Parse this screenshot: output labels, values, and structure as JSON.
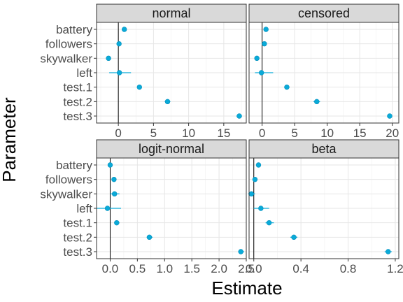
{
  "chart_data": {
    "type": "scatter",
    "subtype": "point-range facets",
    "xlabel": "Estimate",
    "ylabel": "Parameter",
    "grid": true,
    "point_color": "#0aaad8",
    "strip_color": "#d9d9d9",
    "categories": [
      "battery",
      "followers",
      "skywalker",
      "left",
      "test.1",
      "test.2",
      "test.3"
    ],
    "panels": [
      {
        "title": "normal",
        "xlim": [
          -3.1,
          18.2
        ],
        "xticks": [
          0,
          5,
          10,
          15
        ],
        "xticklabels": [
          "0",
          "5",
          "10",
          "15"
        ],
        "values": [
          0.85,
          0.1,
          -1.4,
          0.15,
          3.0,
          7.0,
          17.2
        ],
        "lower": [
          0.6,
          -0.1,
          -1.7,
          -1.3,
          2.7,
          6.6,
          16.8
        ],
        "upper": [
          1.1,
          0.3,
          -1.1,
          1.8,
          3.3,
          7.4,
          17.6
        ]
      },
      {
        "title": "censored",
        "xlim": [
          -2.0,
          21.0
        ],
        "xticks": [
          0,
          5,
          10,
          15,
          20
        ],
        "xticklabels": [
          "0",
          "5",
          "10",
          "15",
          "20"
        ],
        "values": [
          0.6,
          0.35,
          -0.8,
          -0.1,
          3.8,
          8.4,
          19.6
        ],
        "lower": [
          0.3,
          0.1,
          -1.1,
          -1.1,
          3.4,
          7.9,
          19.2
        ],
        "upper": [
          0.9,
          0.6,
          -0.5,
          1.7,
          4.2,
          8.9,
          20.0
        ]
      },
      {
        "title": "logit-normal",
        "xlim": [
          -0.25,
          2.5
        ],
        "xticks": [
          0.0,
          0.5,
          1.0,
          1.5,
          2.0,
          2.5
        ],
        "xticklabels": [
          "0.0",
          "0.5",
          "1.0",
          "1.5",
          "2.0",
          "2.5"
        ],
        "values": [
          0.0,
          0.07,
          0.08,
          -0.05,
          0.12,
          0.72,
          2.4
        ],
        "lower": [
          -0.02,
          0.04,
          0.0,
          -0.25,
          0.08,
          0.67,
          2.35
        ],
        "upper": [
          0.02,
          0.1,
          0.17,
          0.2,
          0.17,
          0.78,
          2.46
        ]
      },
      {
        "title": "beta",
        "xlim": [
          -0.04,
          1.23
        ],
        "xticks": [
          0.0,
          0.4,
          0.8,
          1.2
        ],
        "xticklabels": [
          "0.0",
          "0.4",
          "0.8",
          "1.2"
        ],
        "values": [
          0.04,
          0.01,
          -0.02,
          0.06,
          0.13,
          0.34,
          1.14
        ],
        "lower": [
          0.02,
          -0.01,
          -0.05,
          0.0,
          0.1,
          0.31,
          1.11
        ],
        "upper": [
          0.06,
          0.03,
          0.01,
          0.13,
          0.17,
          0.37,
          1.17
        ]
      }
    ]
  }
}
